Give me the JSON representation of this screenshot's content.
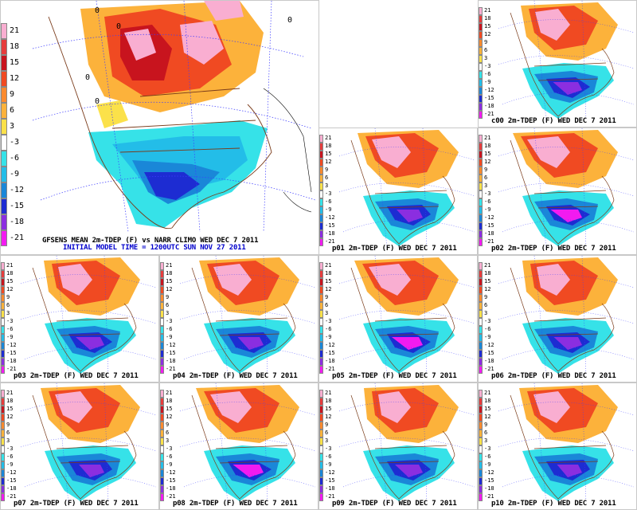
{
  "main": {
    "title": "GFSENS MEAN 2m-TDEP (F) vs NARR CLIMO WED DEC 7 2011",
    "init": "INITIAL MODEL TIME = 1200UTC SUN NOV 27 2011",
    "zero_label": "0"
  },
  "scale_labels": [
    "21",
    "18",
    "15",
    "12",
    "9",
    "6",
    "3",
    "-3",
    "-6",
    "-9",
    "-12",
    "-15",
    "-18",
    "-21"
  ],
  "scale_colors": [
    "#f9aed1",
    "#e63c3c",
    "#c8141e",
    "#f04a22",
    "#fb8a2e",
    "#fcb23b",
    "#fbe14a",
    "#ffffff",
    "#36e2e8",
    "#23bde8",
    "#1a87d8",
    "#1d2cd2",
    "#8b2ee0",
    "#f21bf0"
  ],
  "members": [
    {
      "id": "c00",
      "label": "c00 2m-TDEP (F) WED DEC 7 2011"
    },
    {
      "id": "p01",
      "label": "p01 2m-TDEP (F) WED DEC 7 2011"
    },
    {
      "id": "p02",
      "label": "p02 2m-TDEP (F) WED DEC 7 2011"
    },
    {
      "id": "p03",
      "label": "p03 2m-TDEP (F) WED DEC 7 2011"
    },
    {
      "id": "p04",
      "label": "p04 2m-TDEP (F) WED DEC 7 2011"
    },
    {
      "id": "p05",
      "label": "p05 2m-TDEP (F) WED DEC 7 2011"
    },
    {
      "id": "p06",
      "label": "p06 2m-TDEP (F) WED DEC 7 2011"
    },
    {
      "id": "p07",
      "label": "p07 2m-TDEP (F) WED DEC 7 2011"
    },
    {
      "id": "p08",
      "label": "p08 2m-TDEP (F) WED DEC 7 2011"
    },
    {
      "id": "p09",
      "label": "p09 2m-TDEP (F) WED DEC 7 2011"
    },
    {
      "id": "p10",
      "label": "p10 2m-TDEP (F) WED DEC 7 2011"
    }
  ]
}
